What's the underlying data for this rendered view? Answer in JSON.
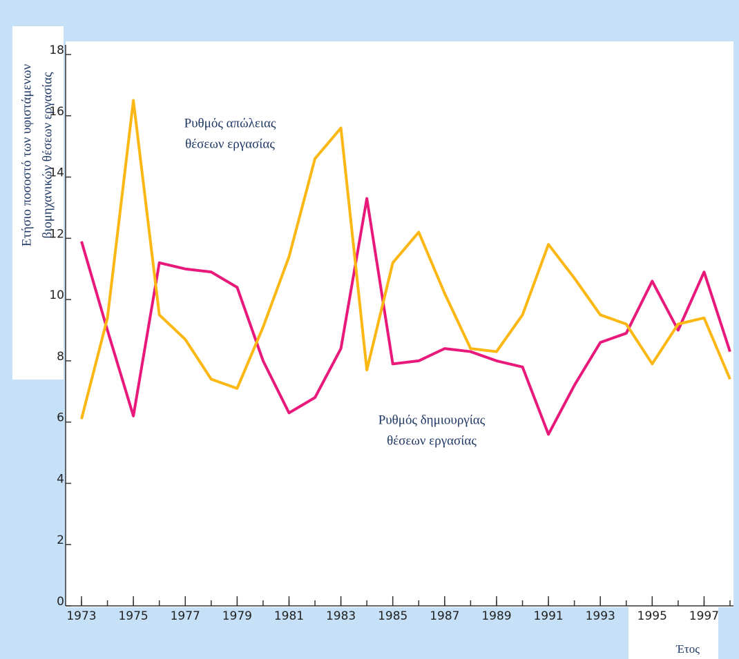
{
  "chart_data": {
    "type": "line",
    "ylabel": [
      "Ετήσιο ποσοστό των υφιστάμενων",
      "βιομηχανικών θέσεων εργασίας"
    ],
    "xlabel": "Έτος",
    "x": [
      1973,
      1974,
      1975,
      1976,
      1977,
      1978,
      1979,
      1980,
      1981,
      1982,
      1983,
      1984,
      1985,
      1986,
      1987,
      1988,
      1989,
      1990,
      1991,
      1992,
      1993,
      1994,
      1995,
      1996,
      1997,
      1998
    ],
    "series": [
      {
        "color": "#e8197a",
        "values": [
          11.9,
          9.0,
          6.2,
          11.2,
          11.0,
          10.9,
          10.4,
          8.0,
          6.3,
          6.8,
          8.4,
          13.3,
          7.9,
          8.0,
          8.4,
          8.3,
          8.0,
          7.8,
          5.6,
          7.2,
          8.6,
          8.9,
          10.6,
          9.0,
          10.9,
          8.3
        ]
      },
      {
        "color": "#fbb713",
        "values": [
          6.1,
          9.4,
          16.5,
          9.5,
          8.7,
          7.4,
          7.1,
          9.1,
          11.4,
          14.6,
          15.6,
          7.7,
          11.2,
          12.2,
          10.2,
          8.4,
          8.3,
          9.5,
          11.8,
          10.7,
          9.5,
          9.2,
          7.9,
          9.2,
          9.4,
          7.4
        ]
      }
    ],
    "annotations": [
      {
        "lines": [
          "Ρυθμός απώλειας",
          "θέσεων εργασίας"
        ]
      },
      {
        "lines": [
          "Ρυθμός δημιουργίας",
          "θέσεων εργασίας"
        ]
      }
    ],
    "xlim": [
      1973,
      1998
    ],
    "xticks": [
      1973,
      1975,
      1977,
      1979,
      1981,
      1983,
      1985,
      1987,
      1989,
      1991,
      1993,
      1995,
      1997
    ],
    "ylim": [
      0,
      18
    ],
    "yticks": [
      0,
      2,
      4,
      6,
      8,
      10,
      12,
      14,
      16,
      18
    ],
    "grid": false
  }
}
